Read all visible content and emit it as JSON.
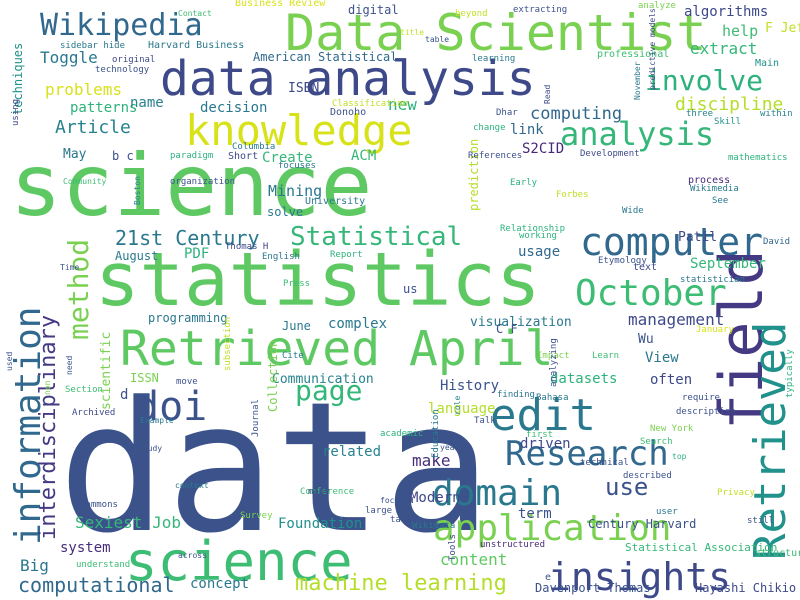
{
  "words": [
    {
      "text": "data",
      "color": "#3b528b",
      "rot": 0
    },
    {
      "text": "science",
      "color": "#5ec962",
      "rot": 0
    },
    {
      "text": "statistics",
      "color": "#5ec962",
      "rot": 0
    },
    {
      "text": "Data Scientist",
      "color": "#7ad151",
      "rot": 0
    },
    {
      "text": "data analysis",
      "color": "#3e4989",
      "rot": 0
    },
    {
      "text": "Retrieved April",
      "color": "#5ec962",
      "rot": 0
    },
    {
      "text": "science",
      "color": "#3dbc74",
      "rot": 0
    },
    {
      "text": "knowledge",
      "color": "#d8e219",
      "rot": 0
    },
    {
      "text": "Wikipedia",
      "color": "#31688e",
      "rot": 0
    },
    {
      "text": "analysis",
      "color": "#35b779",
      "rot": 0
    },
    {
      "text": "computer",
      "color": "#31688e",
      "rot": 0
    },
    {
      "text": "October",
      "color": "#3dbc74",
      "rot": 0
    },
    {
      "text": "field",
      "color": "#443983",
      "rot": 270
    },
    {
      "text": "Retrieved",
      "color": "#21918c",
      "rot": 270
    },
    {
      "text": "information",
      "color": "#31688e",
      "rot": 270
    },
    {
      "text": "method",
      "color": "#7ad151",
      "rot": 270
    },
    {
      "text": "insights",
      "color": "#3e4989",
      "rot": 0
    },
    {
      "text": "edit",
      "color": "#2a788e",
      "rot": 0
    },
    {
      "text": "doi",
      "color": "#3b528b",
      "rot": 0
    },
    {
      "text": "Research",
      "color": "#31688e",
      "rot": 0
    },
    {
      "text": "domain",
      "color": "#2a788e",
      "rot": 0
    },
    {
      "text": "application",
      "color": "#7ad151",
      "rot": 0
    },
    {
      "text": "page",
      "color": "#35b779",
      "rot": 0
    },
    {
      "text": "involve",
      "color": "#2db27d",
      "rot": 0
    },
    {
      "text": "Statistical",
      "color": "#35b779",
      "rot": 0
    },
    {
      "text": "interdisciplinary",
      "color": "#443983",
      "rot": 270
    },
    {
      "text": "use",
      "color": "#3b528b",
      "rot": 0
    },
    {
      "text": "machine learning",
      "color": "#b5de2b",
      "rot": 0
    },
    {
      "text": "computational",
      "color": "#31688e",
      "rot": 0
    },
    {
      "text": "21st Century",
      "color": "#2a788e",
      "rot": 0
    },
    {
      "text": "Article",
      "color": "#26828e",
      "rot": 0
    },
    {
      "text": "discipline",
      "color": "#b5de2b",
      "rot": 0
    },
    {
      "text": "Sexiest Job",
      "color": "#35b779",
      "rot": 0
    },
    {
      "text": "problems",
      "color": "#d8e219",
      "rot": 0
    },
    {
      "text": "Toggle",
      "color": "#2a788e",
      "rot": 0
    },
    {
      "text": "patterns",
      "color": "#2db27d",
      "rot": 0
    },
    {
      "text": "decision",
      "color": "#2a788e",
      "rot": 0
    },
    {
      "text": "computing",
      "color": "#31688e",
      "rot": 0
    },
    {
      "text": "content",
      "color": "#5ec962",
      "rot": 0
    },
    {
      "text": "Big",
      "color": "#2a788e",
      "rot": 0
    },
    {
      "text": "concept",
      "color": "#2a788e",
      "rot": 0
    },
    {
      "text": "Foundation",
      "color": "#21918c",
      "rot": 0
    },
    {
      "text": "Modern",
      "color": "#3e4989",
      "rot": 0
    },
    {
      "text": "term",
      "color": "#3b528b",
      "rot": 0
    },
    {
      "text": "make",
      "color": "#472d7b",
      "rot": 0
    },
    {
      "text": "related",
      "color": "#26828e",
      "rot": 0
    },
    {
      "text": "language",
      "color": "#b5de2b",
      "rot": 0
    },
    {
      "text": "History",
      "color": "#3b528b",
      "rot": 0
    },
    {
      "text": "driven",
      "color": "#3e4989",
      "rot": 0
    },
    {
      "text": "management",
      "color": "#3e4989",
      "rot": 0
    },
    {
      "text": "visualization",
      "color": "#2a788e",
      "rot": 0
    },
    {
      "text": "September",
      "color": "#35b779",
      "rot": 0
    },
    {
      "text": "Mining",
      "color": "#2a788e",
      "rot": 0
    },
    {
      "text": "name",
      "color": "#26828e",
      "rot": 0
    },
    {
      "text": "Create",
      "color": "#35b779",
      "rot": 0
    },
    {
      "text": "ACM",
      "color": "#35b779",
      "rot": 0
    },
    {
      "text": "link",
      "color": "#31688e",
      "rot": 0
    },
    {
      "text": "S2CID",
      "color": "#482878",
      "rot": 0
    },
    {
      "text": "May",
      "color": "#2a788e",
      "rot": 0
    },
    {
      "text": "new",
      "color": "#2db27d",
      "rot": 0
    },
    {
      "text": "ISBN",
      "color": "#3e4989",
      "rot": 0
    },
    {
      "text": "extract",
      "color": "#35b779",
      "rot": 0
    },
    {
      "text": "help",
      "color": "#3dbc74",
      "rot": 0
    },
    {
      "text": "algorithms",
      "color": "#3e4989",
      "rot": 0
    },
    {
      "text": "PDF",
      "color": "#2db27d",
      "rot": 0
    },
    {
      "text": "August",
      "color": "#2a788e",
      "rot": 0
    },
    {
      "text": "usage",
      "color": "#31688e",
      "rot": 0
    },
    {
      "text": "complex",
      "color": "#2a788e",
      "rot": 0
    },
    {
      "text": "programming",
      "color": "#2a788e",
      "rot": 0
    },
    {
      "text": "Communication",
      "color": "#26828e",
      "rot": 0
    },
    {
      "text": "datasets",
      "color": "#2db27d",
      "rot": 0
    },
    {
      "text": "often",
      "color": "#3e4989",
      "rot": 0
    },
    {
      "text": "View",
      "color": "#2a788e",
      "rot": 0
    },
    {
      "text": "system",
      "color": "#472d7b",
      "rot": 0
    },
    {
      "text": "scientific",
      "color": "#7ad151",
      "rot": 270
    },
    {
      "text": "Collection",
      "color": "#7ad151",
      "rot": 270
    },
    {
      "text": "prediction",
      "color": "#b5de2b",
      "rot": 270
    },
    {
      "text": "digital",
      "color": "#3b528b",
      "rot": 0
    },
    {
      "text": "Patil",
      "color": "#3e4989",
      "rot": 0
    },
    {
      "text": "solve",
      "color": "#2a788e",
      "rot": 0
    },
    {
      "text": "June",
      "color": "#2a788e",
      "rot": 0
    },
    {
      "text": "Wu",
      "color": "#3b528b",
      "rot": 0
    },
    {
      "text": "ISSN",
      "color": "#7ad151",
      "rot": 0
    },
    {
      "text": "Harvard Business",
      "color": "#2a788e",
      "rot": 0
    },
    {
      "text": "American Statistical",
      "color": "#31688e",
      "rot": 0
    },
    {
      "text": "Statistical Association",
      "color": "#35b779",
      "rot": 0
    },
    {
      "text": "Davenport Thomas",
      "color": "#3b528b",
      "rot": 0
    },
    {
      "text": "Hayashi Chikio",
      "color": "#3e4989",
      "rot": 0
    },
    {
      "text": "Century Harvard",
      "color": "#3b528b",
      "rot": 0
    },
    {
      "text": "techniques",
      "color": "#21918c",
      "rot": 270
    },
    {
      "text": "Business Review",
      "color": "#d8e219",
      "rot": 0
    },
    {
      "text": "extracting",
      "color": "#3b528b",
      "rot": 0
    },
    {
      "text": "analyze",
      "color": "#7ad151",
      "rot": 0
    },
    {
      "text": "beyond",
      "color": "#c2df23",
      "rot": 0
    },
    {
      "text": "Contact",
      "color": "#3dbc74",
      "rot": 0
    },
    {
      "text": "professional",
      "color": "#3dbc74",
      "rot": 0
    },
    {
      "text": "learning",
      "color": "#2a788e",
      "rot": 0
    },
    {
      "text": "original",
      "color": "#3e4989",
      "rot": 0
    },
    {
      "text": "technology",
      "color": "#3b528b",
      "rot": 0
    },
    {
      "text": "sidebar hide",
      "color": "#2a788e",
      "rot": 0
    },
    {
      "text": "Main",
      "color": "#21918c",
      "rot": 0
    },
    {
      "text": "Skill",
      "color": "#21918c",
      "rot": 0
    },
    {
      "text": "within",
      "color": "#26828e",
      "rot": 0
    },
    {
      "text": "three",
      "color": "#26828e",
      "rot": 0
    },
    {
      "text": "mathematics",
      "color": "#2db27d",
      "rot": 0
    },
    {
      "text": "Dhar",
      "color": "#3b528b",
      "rot": 0
    },
    {
      "text": "Donoho",
      "color": "#3b528b",
      "rot": 0
    },
    {
      "text": "Classification",
      "color": "#c2df23",
      "rot": 0
    },
    {
      "text": "paradigm",
      "color": "#2db27d",
      "rot": 0
    },
    {
      "text": "Columbia",
      "color": "#2a788e",
      "rot": 0
    },
    {
      "text": "Short",
      "color": "#3e4989",
      "rot": 0
    },
    {
      "text": "focuses",
      "color": "#2a788e",
      "rot": 0
    },
    {
      "text": "organization",
      "color": "#3b528b",
      "rot": 0
    },
    {
      "text": "University",
      "color": "#2a788e",
      "rot": 0
    },
    {
      "text": "Boston",
      "color": "#26828e",
      "rot": 270
    },
    {
      "text": "Community",
      "color": "#3dbc74",
      "rot": 0
    },
    {
      "text": "Early",
      "color": "#2db27d",
      "rot": 0
    },
    {
      "text": "Forbes",
      "color": "#c2df23",
      "rot": 0
    },
    {
      "text": "process",
      "color": "#482878",
      "rot": 0
    },
    {
      "text": "Wikimedia",
      "color": "#2a788e",
      "rot": 0
    },
    {
      "text": "See",
      "color": "#2a788e",
      "rot": 0
    },
    {
      "text": "Wide",
      "color": "#2a788e",
      "rot": 0
    },
    {
      "text": "References",
      "color": "#3b528b",
      "rot": 0
    },
    {
      "text": "Development",
      "color": "#3e4989",
      "rot": 0
    },
    {
      "text": "change",
      "color": "#2db27d",
      "rot": 0
    },
    {
      "text": "Relationship",
      "color": "#2db27d",
      "rot": 0
    },
    {
      "text": "working",
      "color": "#2db27d",
      "rot": 0
    },
    {
      "text": "Etymology",
      "color": "#3b528b",
      "rot": 0
    },
    {
      "text": "text",
      "color": "#3e4989",
      "rot": 0
    },
    {
      "text": "statistician",
      "color": "#2a788e",
      "rot": 0
    },
    {
      "text": "David",
      "color": "#31688e",
      "rot": 0
    },
    {
      "text": "Report",
      "color": "#2db27d",
      "rot": 0
    },
    {
      "text": "English",
      "color": "#2a788e",
      "rot": 0
    },
    {
      "text": "Press",
      "color": "#3dbc74",
      "rot": 0
    },
    {
      "text": "Thomas H",
      "color": "#3e4989",
      "rot": 0
    },
    {
      "text": "Cite",
      "color": "#2a788e",
      "rot": 0
    },
    {
      "text": "Impact",
      "color": "#7ad151",
      "rot": 0
    },
    {
      "text": "January",
      "color": "#d8e219",
      "rot": 0
    },
    {
      "text": "Learn",
      "color": "#3dbc74",
      "rot": 0
    },
    {
      "text": "finding",
      "color": "#2a788e",
      "rot": 0
    },
    {
      "text": "Bahasa",
      "color": "#2a788e",
      "rot": 0
    },
    {
      "text": "Talk",
      "color": "#3b528b",
      "rot": 0
    },
    {
      "text": "description",
      "color": "#3b528b",
      "rot": 0
    },
    {
      "text": "require",
      "color": "#3b528b",
      "rot": 0
    },
    {
      "text": "New York",
      "color": "#7ad151",
      "rot": 0
    },
    {
      "text": "first",
      "color": "#3dbc74",
      "rot": 0
    },
    {
      "text": "Search",
      "color": "#3dbc74",
      "rot": 0
    },
    {
      "text": "top",
      "color": "#2db27d",
      "rot": 0
    },
    {
      "text": "described",
      "color": "#3b528b",
      "rot": 0
    },
    {
      "text": "Privacy",
      "color": "#c2df23",
      "rot": 0
    },
    {
      "text": "user",
      "color": "#2a788e",
      "rot": 0
    },
    {
      "text": "still",
      "color": "#3b528b",
      "rot": 0
    },
    {
      "text": "structured",
      "color": "#3dbc74",
      "rot": 0
    },
    {
      "text": "unstructured",
      "color": "#482878",
      "rot": 0
    },
    {
      "text": "Tools",
      "color": "#3e4989",
      "rot": 270
    },
    {
      "text": "task",
      "color": "#3b528b",
      "rot": 0
    },
    {
      "text": "large",
      "color": "#3b528b",
      "rot": 0
    },
    {
      "text": "Conference",
      "color": "#3dbc74",
      "rot": 0
    },
    {
      "text": "Journal",
      "color": "#3b528b",
      "rot": 270
    },
    {
      "text": "Survey",
      "color": "#7ad151",
      "rot": 0
    },
    {
      "text": "many",
      "color": "#3b528b",
      "rot": 0
    },
    {
      "text": "context",
      "color": "#2a788e",
      "rot": 0
    },
    {
      "text": "across",
      "color": "#3b528b",
      "rot": 0
    },
    {
      "text": "understand",
      "color": "#3dbc74",
      "rot": 0
    },
    {
      "text": "Commons",
      "color": "#3b528b",
      "rot": 0
    },
    {
      "text": "study",
      "color": "#3b528b",
      "rot": 0
    },
    {
      "text": "Example",
      "color": "#2a788e",
      "rot": 0
    },
    {
      "text": "Archived",
      "color": "#3e4989",
      "rot": 0
    },
    {
      "text": "Section",
      "color": "#3dbc74",
      "rot": 0
    },
    {
      "text": "move",
      "color": "#3b528b",
      "rot": 0
    },
    {
      "text": "academic",
      "color": "#2db27d",
      "rot": 0
    },
    {
      "text": "technical",
      "color": "#3b528b",
      "rot": 0
    },
    {
      "text": "Wikidata",
      "color": "#2a788e",
      "rot": 0
    },
    {
      "text": "Education",
      "color": "#2a788e",
      "rot": 270
    },
    {
      "text": "analyzing",
      "color": "#3b528b",
      "rot": 270
    },
    {
      "text": "subsection",
      "color": "#c2df23",
      "rot": 270
    },
    {
      "text": "typically",
      "color": "#2db27d",
      "rot": 270
    },
    {
      "text": "predictive models",
      "color": "#3e4989",
      "rot": 270
    },
    {
      "text": "November",
      "color": "#2a788e",
      "rot": 270
    },
    {
      "text": "years",
      "color": "#3b528b",
      "rot": 0
    },
    {
      "text": "role",
      "color": "#26828e",
      "rot": 270
    },
    {
      "text": "focused",
      "color": "#3b528b",
      "rot": 0
    },
    {
      "text": "used",
      "color": "#3b528b",
      "rot": 270
    },
    {
      "text": "non",
      "color": "#7ad151",
      "rot": 270
    },
    {
      "text": "need",
      "color": "#3b528b",
      "rot": 270
    },
    {
      "text": "using",
      "color": "#3e4989",
      "rot": 270
    },
    {
      "text": "Time",
      "color": "#3b528b",
      "rot": 0
    },
    {
      "text": "Read",
      "color": "#3e4989",
      "rot": 270
    },
    {
      "text": "title",
      "color": "#c2df23",
      "rot": 0
    },
    {
      "text": "table",
      "color": "#3b528b",
      "rot": 0
    },
    {
      "text": "us",
      "color": "#3b528b",
      "rot": 0
    },
    {
      "text": "C F",
      "color": "#3b528b",
      "rot": 0
    },
    {
      "text": "b c",
      "color": "#3b528b",
      "rot": 0
    },
    {
      "text": "F Jeff",
      "color": "#c2df23",
      "rot": 0
    },
    {
      "text": "d",
      "color": "#3b528b",
      "rot": 0
    },
    {
      "text": "e",
      "color": "#3b528b",
      "rot": 0
    },
    {
      "text": "g",
      "color": "#3b528b",
      "rot": 0
    }
  ]
}
